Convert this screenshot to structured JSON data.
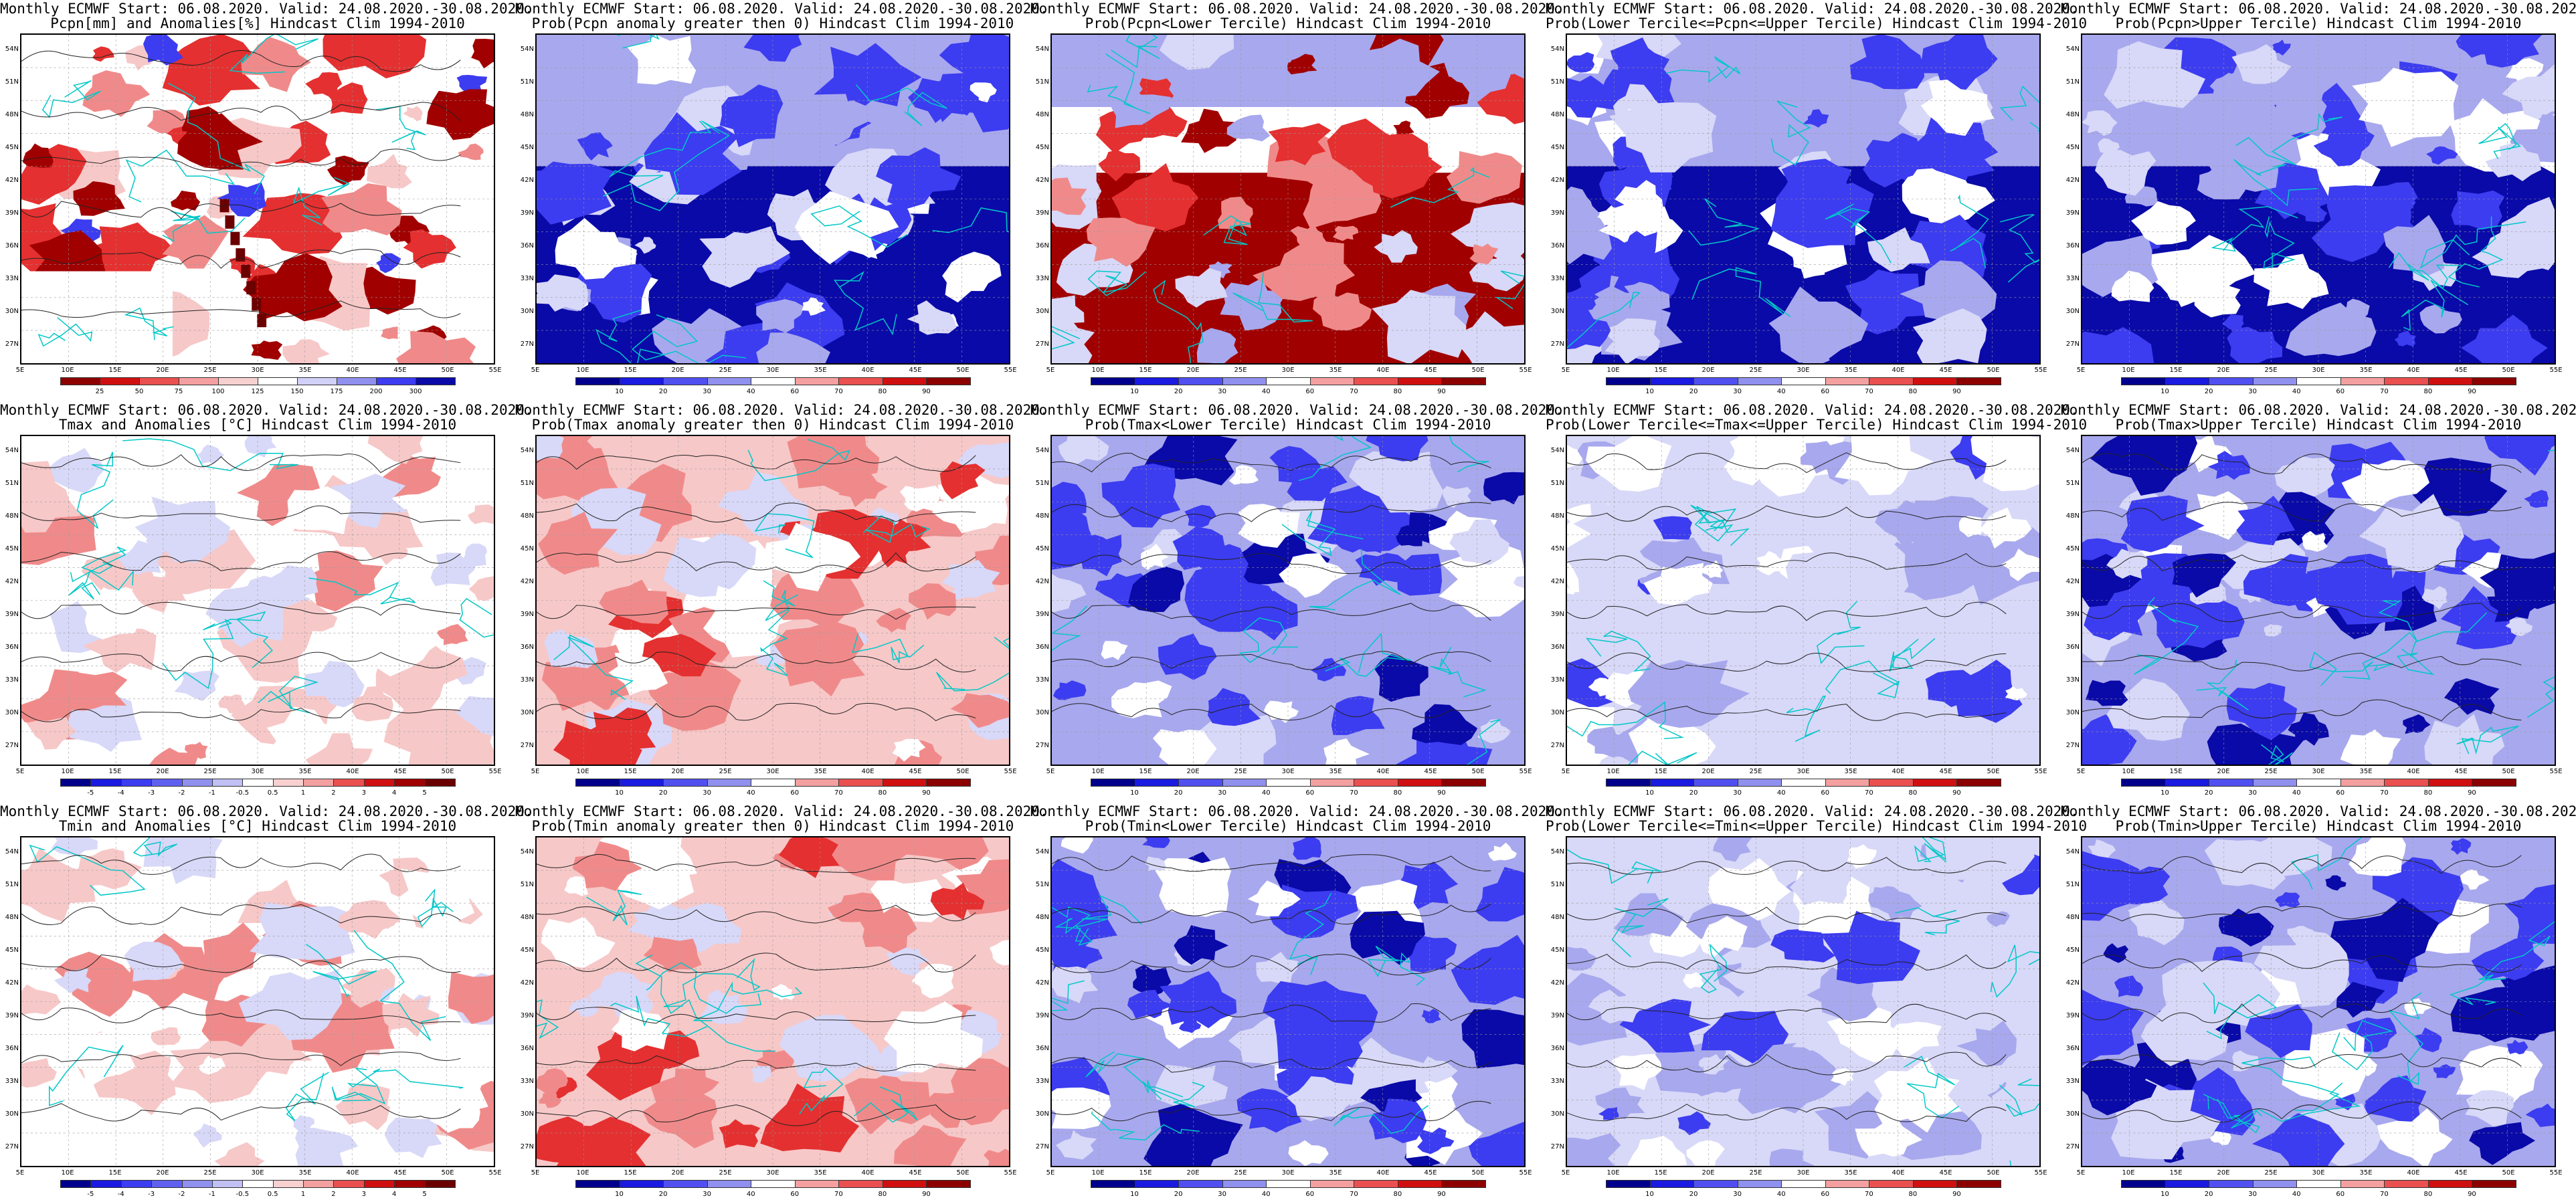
{
  "title_prefix": "Monthly ECMWF Start: 06.08.2020. Valid: 24.08.2020.-30.08.2020.",
  "lat_labels": [
    "54N",
    "51N",
    "48N",
    "45N",
    "42N",
    "39N",
    "36N",
    "33N",
    "30N",
    "27N"
  ],
  "lon_labels": [
    "5E",
    "10E",
    "15E",
    "20E",
    "25E",
    "30E",
    "35E",
    "40E",
    "45E",
    "50E",
    "55E"
  ],
  "colors": {
    "white": "#ffffff",
    "deep_blue": "#0a0aa8",
    "mid_blue": "#3c3cf0",
    "light_blue": "#a8a8ee",
    "pale_blue": "#d8d8f8",
    "pale_red": "#f7c8c8",
    "light_red": "#f08a8a",
    "mid_red": "#e43030",
    "deep_red": "#a00000",
    "brown": "#6b0000",
    "coast": "#00c8c8",
    "contour": "#222222"
  },
  "scales": {
    "prob": {
      "ticks": [
        "10",
        "20",
        "30",
        "40",
        "60",
        "70",
        "80",
        "90"
      ],
      "colors": [
        "#00008c",
        "#1a1ae0",
        "#5050f0",
        "#9090ee",
        "#ffffff",
        "#f4a0a0",
        "#ea5050",
        "#d01010",
        "#8c0000"
      ]
    },
    "pcpn": {
      "ticks": [
        "25",
        "50",
        "75",
        "100",
        "125",
        "150",
        "175",
        "200",
        "300"
      ],
      "colors": [
        "#8c0000",
        "#d01010",
        "#ea5050",
        "#f4a0a0",
        "#f8d0d0",
        "#ffffff",
        "#d0d0f8",
        "#9090ee",
        "#3c3cf0",
        "#0a0aa8"
      ]
    },
    "temp": {
      "ticks": [
        "-5",
        "-4",
        "-3",
        "-2",
        "-1",
        "-0.5",
        "0.5",
        "1",
        "2",
        "3",
        "4",
        "5"
      ],
      "colors": [
        "#00008c",
        "#1a1ae0",
        "#3c3cf0",
        "#6060f0",
        "#9090ee",
        "#c0c0f4",
        "#ffffff",
        "#f8d0d0",
        "#f4a0a0",
        "#ea5050",
        "#d01010",
        "#a00000",
        "#6b0000"
      ]
    }
  },
  "panels": [
    {
      "id": "pcpn-anom",
      "subtitle": "Pcpn[mm] and Anomalies[%] Hindcast Clim 1994-2010",
      "scale": "pcpn",
      "style": "pcpn_anom"
    },
    {
      "id": "pcpn-prob-pos",
      "subtitle": "Prob(Pcpn anomaly greater then 0) Hindcast Clim 1994-2010",
      "scale": "prob",
      "style": "blue_heavy"
    },
    {
      "id": "pcpn-prob-lower",
      "subtitle": "Prob(Pcpn<Lower Tercile) Hindcast Clim 1994-2010",
      "scale": "prob",
      "style": "red_south"
    },
    {
      "id": "pcpn-prob-middle",
      "subtitle": "Prob(Lower Tercile<=Pcpn<=Upper Tercile) Hindcast Clim 1994-2010",
      "scale": "prob",
      "style": "blue_heavy"
    },
    {
      "id": "pcpn-prob-upper",
      "subtitle": "Prob(Pcpn>Upper Tercile) Hindcast Clim 1994-2010",
      "scale": "prob",
      "style": "blue_heavy"
    },
    {
      "id": "tmax-anom",
      "subtitle": "Tmax and Anomalies [°C] Hindcast Clim 1994-2010",
      "scale": "temp",
      "style": "temp_anom"
    },
    {
      "id": "tmax-prob-pos",
      "subtitle": "Prob(Tmax anomaly greater then 0) Hindcast Clim 1994-2010",
      "scale": "prob",
      "style": "red_mixed"
    },
    {
      "id": "tmax-prob-lower",
      "subtitle": "Prob(Tmax<Lower Tercile) Hindcast Clim 1994-2010",
      "scale": "prob",
      "style": "blue_mixed"
    },
    {
      "id": "tmax-prob-middle",
      "subtitle": "Prob(Lower Tercile<=Tmax<=Upper Tercile) Hindcast Clim 1994-2010",
      "scale": "prob",
      "style": "blue_light"
    },
    {
      "id": "tmax-prob-upper",
      "subtitle": "Prob(Tmax>Upper Tercile) Hindcast Clim 1994-2010",
      "scale": "prob",
      "style": "blue_mixed"
    },
    {
      "id": "tmin-anom",
      "subtitle": "Tmin and Anomalies [°C] Hindcast Clim 1994-2010",
      "scale": "temp",
      "style": "temp_anom"
    },
    {
      "id": "tmin-prob-pos",
      "subtitle": "Prob(Tmin anomaly greater then 0) Hindcast Clim 1994-2010",
      "scale": "prob",
      "style": "red_mixed"
    },
    {
      "id": "tmin-prob-lower",
      "subtitle": "Prob(Tmin<Lower Tercile) Hindcast Clim 1994-2010",
      "scale": "prob",
      "style": "blue_mixed"
    },
    {
      "id": "tmin-prob-middle",
      "subtitle": "Prob(Lower Tercile<=Tmin<=Upper Tercile) Hindcast Clim 1994-2010",
      "scale": "prob",
      "style": "blue_light"
    },
    {
      "id": "tmin-prob-upper",
      "subtitle": "Prob(Tmin>Upper Tercile) Hindcast Clim 1994-2010",
      "scale": "prob",
      "style": "blue_mixed"
    }
  ]
}
